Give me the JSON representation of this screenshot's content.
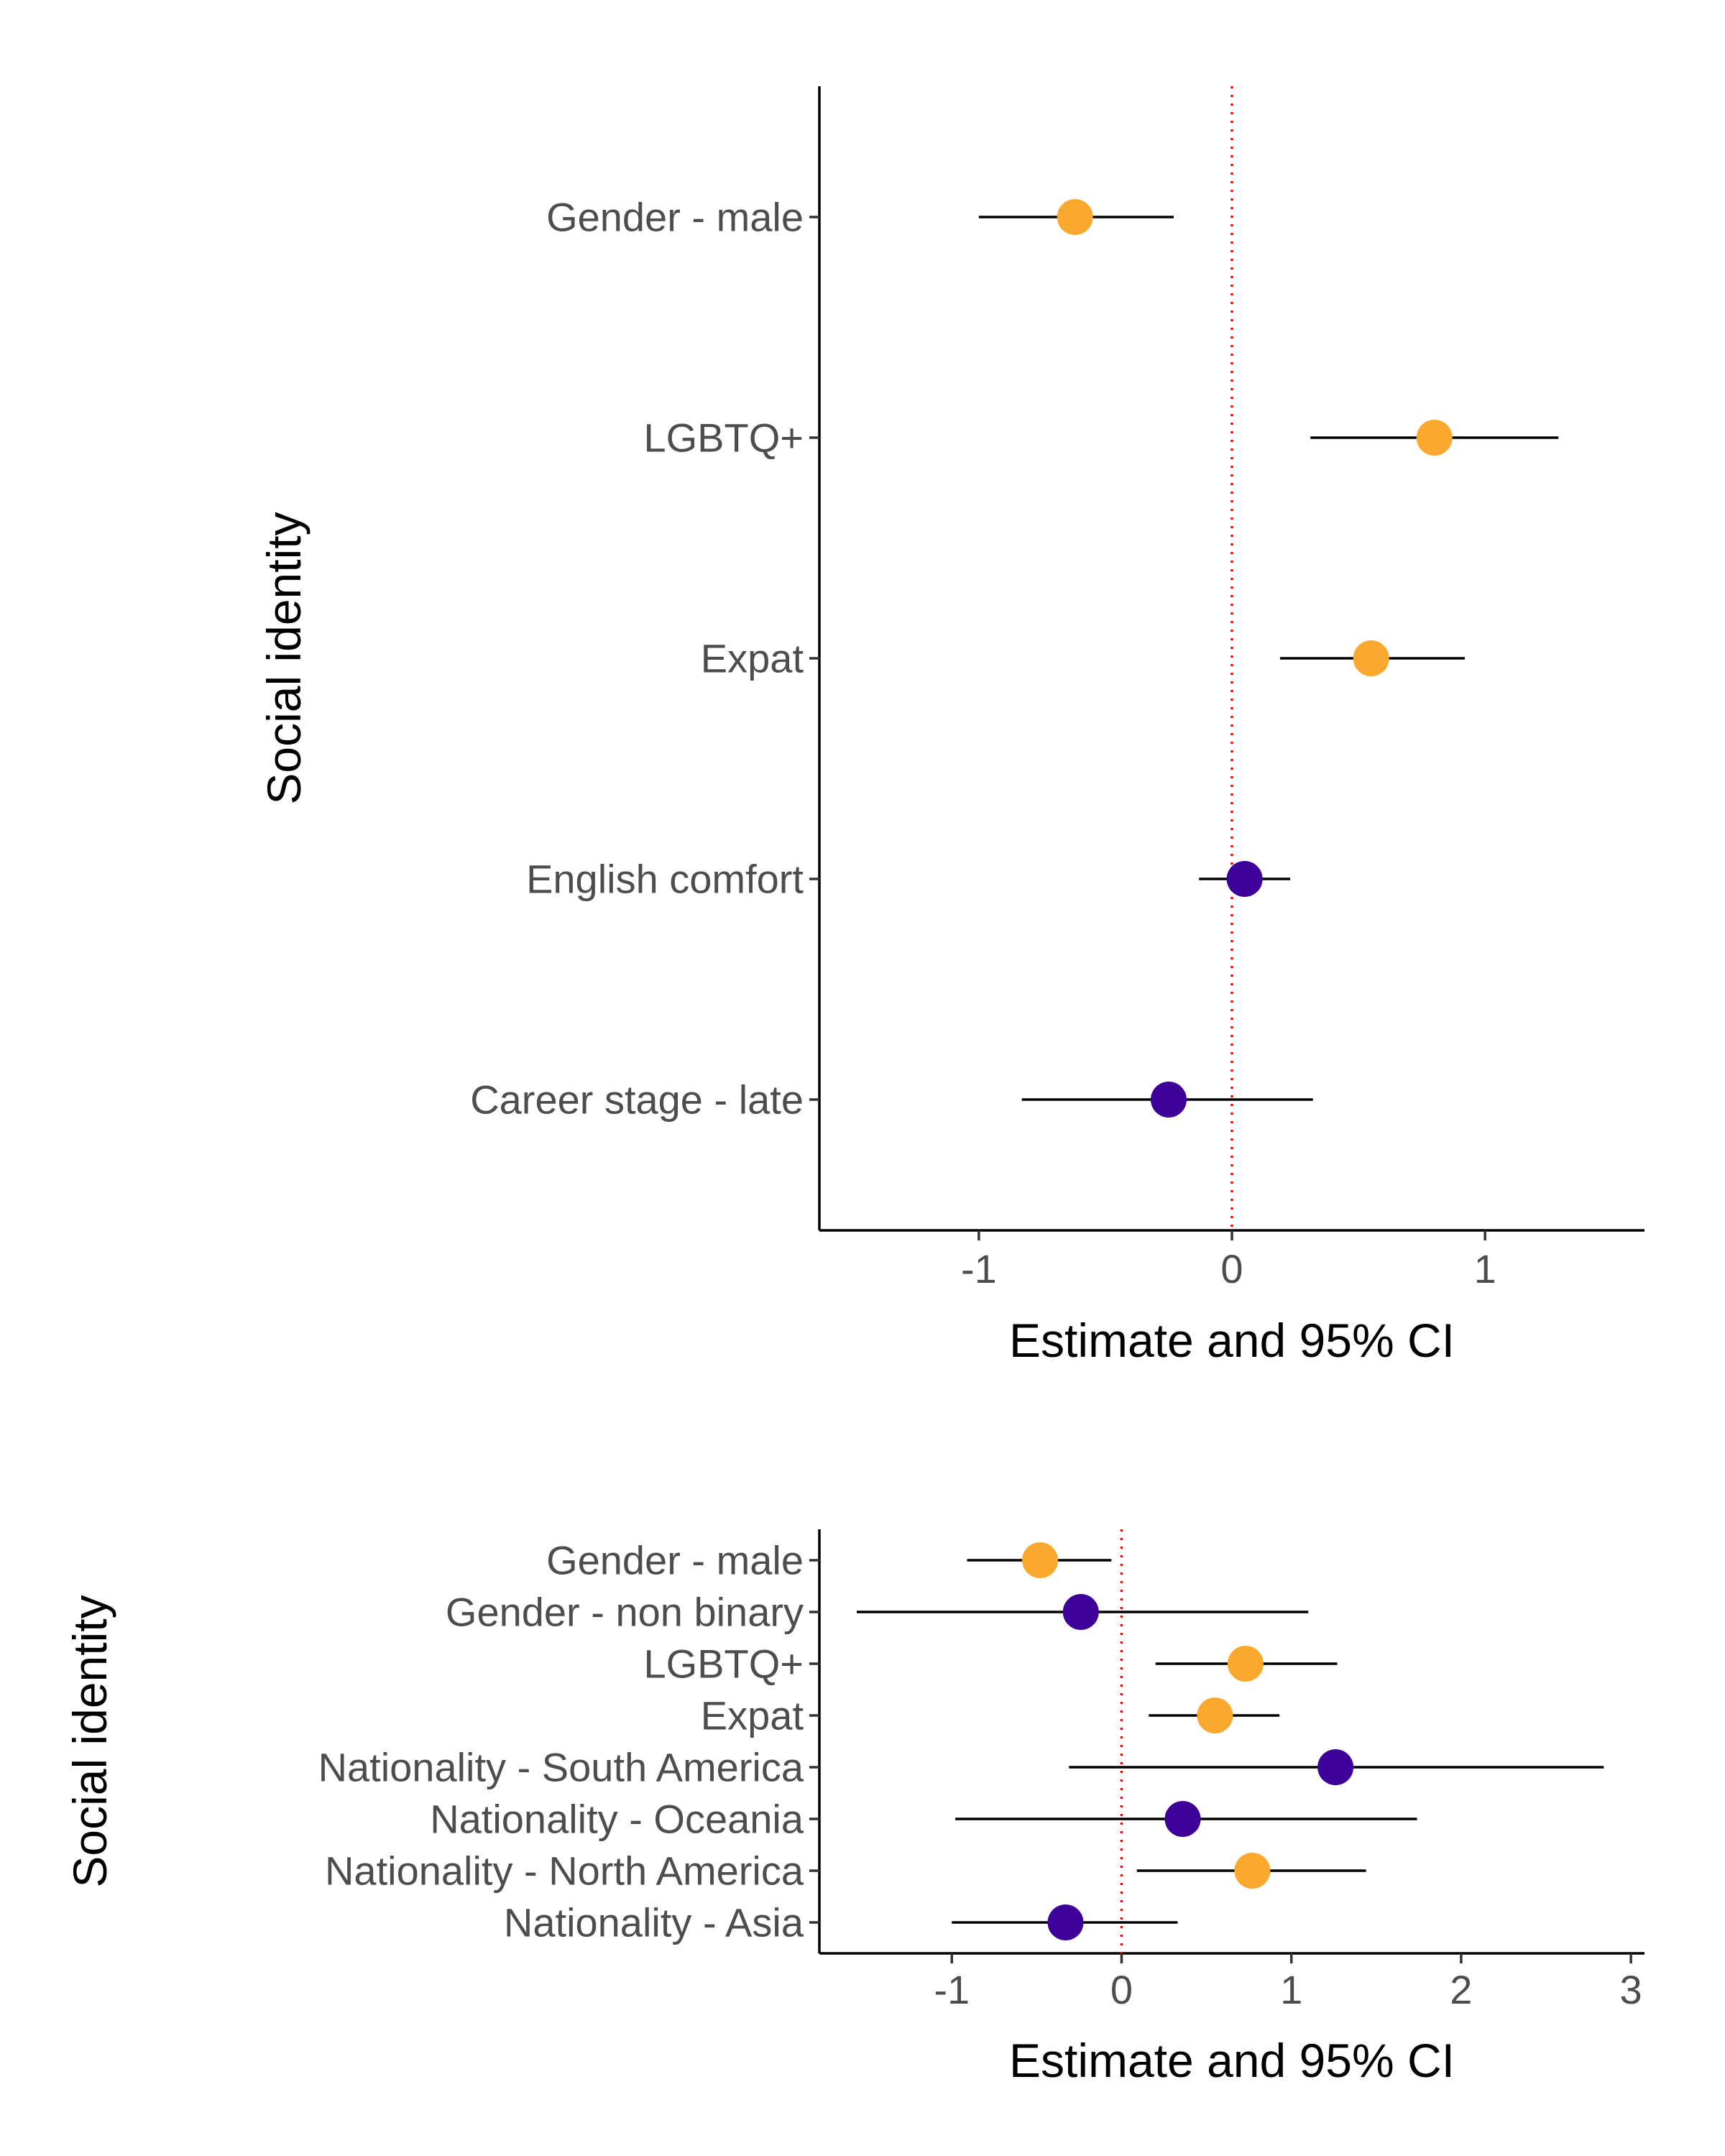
{
  "colors": {
    "positive_point": "#FBA92E",
    "negative_point": "#3D0099",
    "reference_line": "#FF0000"
  },
  "chart_data": [
    {
      "type": "scatter",
      "subtype": "forest-plot",
      "xlabel": "Estimate and 95% CI",
      "ylabel": "Social identity",
      "xlim": [
        -1.63,
        1.63
      ],
      "xticks": [
        -1,
        0,
        1
      ],
      "reference_x": 0,
      "grid": false,
      "categories": [
        "Gender - male",
        "LGBTQ+",
        "Expat",
        "English comfort",
        "Career stage - late"
      ],
      "estimates": [
        -0.62,
        0.8,
        0.55,
        0.05,
        -0.25
      ],
      "ci_low": [
        -1.0,
        0.31,
        0.19,
        -0.13,
        -0.83
      ],
      "ci_high": [
        -0.23,
        1.29,
        0.92,
        0.23,
        0.32
      ],
      "point_colors": [
        "orange",
        "orange",
        "orange",
        "purple",
        "purple"
      ]
    },
    {
      "type": "scatter",
      "subtype": "forest-plot",
      "xlabel": "Estimate and 95% CI",
      "ylabel": "Social identity",
      "xlim": [
        -1.78,
        3.08
      ],
      "xticks": [
        -1,
        0,
        1,
        2,
        3
      ],
      "reference_x": 0,
      "grid": false,
      "categories": [
        "Gender - male",
        "Gender - non binary",
        "LGBTQ+",
        "Expat",
        "Nationality - South America",
        "Nationality - Oceania",
        "Nationality - North America",
        "Nationality - Asia"
      ],
      "estimates": [
        -0.48,
        -0.24,
        0.73,
        0.55,
        1.26,
        0.36,
        0.77,
        -0.33
      ],
      "ci_low": [
        -0.91,
        -1.56,
        0.2,
        0.16,
        -0.31,
        -0.98,
        0.09,
        -1.0
      ],
      "ci_high": [
        -0.06,
        1.1,
        1.27,
        0.93,
        2.84,
        1.74,
        1.44,
        0.33
      ],
      "point_colors": [
        "orange",
        "purple",
        "orange",
        "orange",
        "purple",
        "purple",
        "orange",
        "purple"
      ]
    }
  ]
}
